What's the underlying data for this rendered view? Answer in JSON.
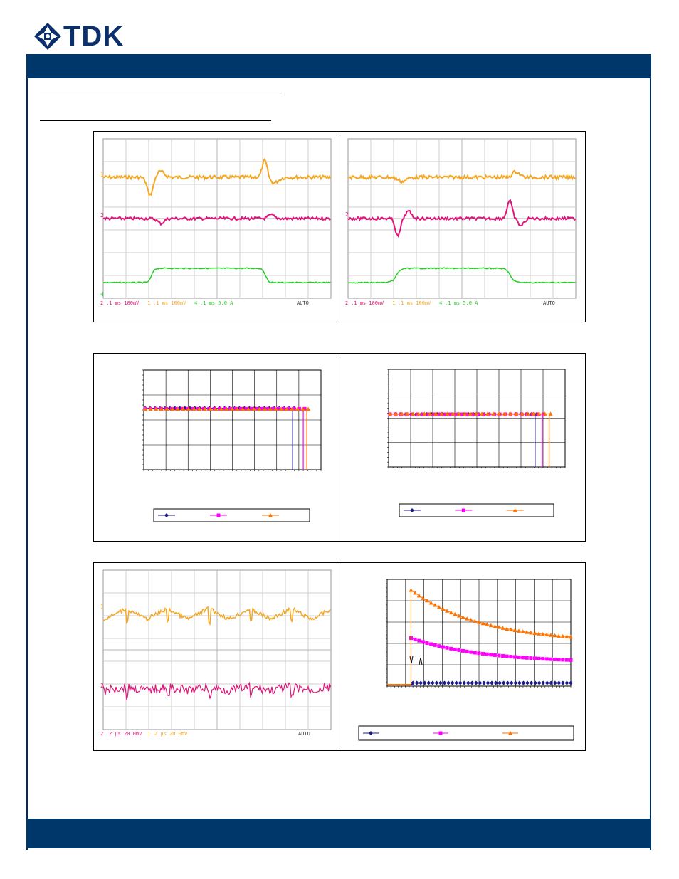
{
  "brand": {
    "name": "TDK",
    "logo_color": "#0a2f6b",
    "bar_color": "#00376a"
  },
  "colors": {
    "ch1": "#f5a623",
    "ch2": "#e0157a",
    "ch4": "#22d022",
    "navy_series": "#1a1a8c",
    "magenta_series": "#ff00ff",
    "orange_series": "#ff7300"
  },
  "scope_1": {
    "status": {
      "ch2": "2",
      "ch2_setting": ".1 ms 100mV",
      "ch1": "1",
      "ch1_setting": ".1 ms 100mV",
      "ch4": "4",
      "ch4_setting": ".1 ms 5.0 A",
      "mode": "AUTO"
    },
    "markers": {
      "m1": "1",
      "m2": "2",
      "m4": "4"
    }
  },
  "scope_2": {
    "status": {
      "ch2": "2",
      "ch2_setting": ".1 ms 100mV",
      "ch1": "1",
      "ch1_setting": ".1 ms 100mV",
      "ch4": "4",
      "ch4_setting": ".1 ms 5.0 A",
      "mode": "AUTO"
    },
    "markers": {
      "m1": "1",
      "m2": "2"
    }
  },
  "scope_3": {
    "status": {
      "ch2": "2",
      "ch2_setting": "2 µs 20.0mV",
      "ch1": "1",
      "ch1_setting": "2 µs 20.0mV",
      "mode": "AUTO"
    },
    "markers": {
      "m1": "1",
      "m2": "2"
    }
  },
  "chart_data": [
    {
      "type": "line",
      "series": [
        {
          "color": "#1a1a8c",
          "marker": "diamond",
          "values": [
            0.617,
            0.617,
            0.617,
            0.617,
            0.617,
            0.617,
            0.617,
            0.617,
            0.617,
            0.617,
            0.617,
            0.617,
            0.617,
            0.617,
            0.617,
            0.617,
            0.617,
            0.617,
            0.617,
            0.617,
            0.617,
            0.617,
            0.617,
            0.617,
            0.617,
            0.617,
            0.617,
            0.617,
            0.617,
            0.617,
            0.617
          ]
        },
        {
          "color": "#ff00ff",
          "marker": "square",
          "values": [
            0.612,
            0.612,
            0.612,
            0.612,
            0.612,
            0.612,
            0.612,
            0.612,
            0.612,
            0.612,
            0.612,
            0.612,
            0.612,
            0.612,
            0.612,
            0.612,
            0.612,
            0.612,
            0.612,
            0.612,
            0.612,
            0.612,
            0.612,
            0.612,
            0.612,
            0.612,
            0.612,
            0.612,
            0.612,
            0.612,
            0.612
          ]
        },
        {
          "color": "#ff7300",
          "marker": "triangle",
          "values": [
            0.61,
            0.61,
            0.61,
            0.61,
            0.61,
            0.61,
            0.61,
            0.61,
            0.61,
            0.61,
            0.61,
            0.61,
            0.61,
            0.61,
            0.61,
            0.61,
            0.61,
            0.61,
            0.61,
            0.61,
            0.61,
            0.61,
            0.61,
            0.61,
            0.61,
            0.61,
            0.61,
            0.61,
            0.61,
            0.61,
            0.61
          ]
        }
      ],
      "drop_offs": [
        0.84,
        0.9,
        0.92
      ],
      "ylim": [
        0,
        1
      ],
      "grid": true,
      "legend": "bottom"
    },
    {
      "type": "line",
      "series": [
        {
          "color": "#1a1a8c",
          "marker": "diamond",
          "values": [
            0.54,
            0.54,
            0.54,
            0.54,
            0.54,
            0.54,
            0.54,
            0.54,
            0.54,
            0.54,
            0.54,
            0.54,
            0.54,
            0.54,
            0.54,
            0.54,
            0.54,
            0.54,
            0.54,
            0.54,
            0.54,
            0.54,
            0.54,
            0.54,
            0.54,
            0.54,
            0.54,
            0.54,
            0.54
          ]
        },
        {
          "color": "#ff00ff",
          "marker": "square",
          "values": [
            0.54,
            0.54,
            0.54,
            0.54,
            0.54,
            0.54,
            0.54,
            0.54,
            0.54,
            0.54,
            0.54,
            0.54,
            0.54,
            0.54,
            0.54,
            0.54,
            0.54,
            0.54,
            0.54,
            0.54,
            0.54,
            0.54,
            0.54,
            0.54,
            0.54,
            0.54,
            0.54,
            0.54,
            0.54
          ]
        },
        {
          "color": "#ff7300",
          "marker": "triangle",
          "values": [
            0.545,
            0.545,
            0.545,
            0.545,
            0.545,
            0.545,
            0.545,
            0.545,
            0.545,
            0.545,
            0.545,
            0.545,
            0.545,
            0.545,
            0.545,
            0.545,
            0.545,
            0.545,
            0.545,
            0.545,
            0.545,
            0.545,
            0.545,
            0.545,
            0.545,
            0.545,
            0.545,
            0.545,
            0.545
          ]
        }
      ],
      "drop_offs": [
        0.83,
        0.87,
        0.91
      ],
      "ylim": [
        0,
        1
      ],
      "grid": true,
      "legend": "bottom"
    },
    {
      "type": "line",
      "series": [
        {
          "color": "#1a1a8c",
          "marker": "diamond",
          "onset": 0.14,
          "start": 0.03,
          "end": 0.03
        },
        {
          "color": "#ff00ff",
          "marker": "square",
          "onset": 0.13,
          "start": 0.45,
          "end": 0.22
        },
        {
          "color": "#ff7300",
          "marker": "triangle",
          "onset": 0.13,
          "start": 0.9,
          "end": 0.41
        }
      ],
      "ylim": [
        0,
        1
      ],
      "grid": true,
      "legend": "bottom"
    }
  ]
}
